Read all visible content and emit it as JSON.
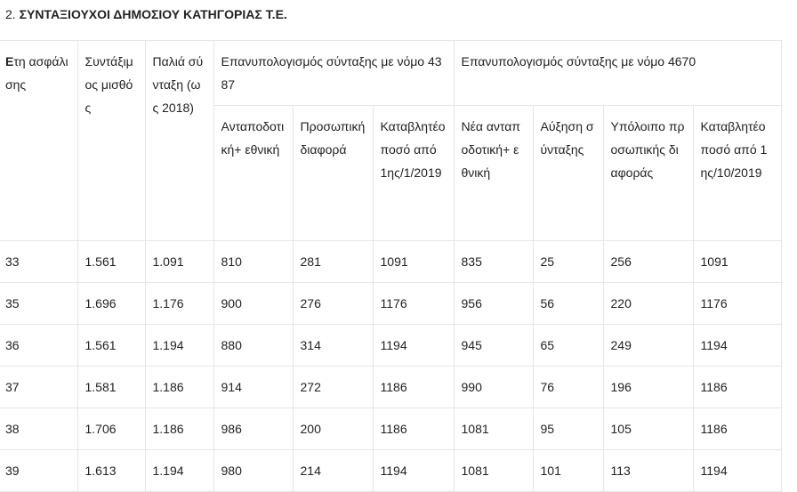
{
  "heading": {
    "number": "2.",
    "title": "ΣΥΝΤΑΞΙΟΥΧΟΙ ΔΗΜΟΣΙΟΥ ΚΑΤΗΓΟΡΙΑΣ Τ.Ε."
  },
  "table": {
    "headers": {
      "years_first_letter": "Ε",
      "years_rest": "τη ασφάλισης",
      "salary": "Συντάξιμος μισθός",
      "old_pension": "Παλιά σύνταξη (ως 2018)",
      "group_4387": "Επανυπολογισμός σύνταξης με νόμο 4387",
      "group_4670": "Επανυπολογισμός σύνταξης με νόμο 4670",
      "sub": [
        "Ανταποδοτική+ εθνική",
        "Προσωπική διαφορά",
        "Καταβλητέο ποσό από 1ης/1/2019",
        "Νέα ανταποδοτική+ εθνική",
        "Αύξηση σύνταξης",
        "Υπόλοιπο προσωπικής διαφοράς",
        "Καταβλητέο ποσό από 1ης/10/2019"
      ]
    },
    "rows": [
      [
        "33",
        "1.561",
        "1.091",
        "810",
        "281",
        "1091",
        "835",
        "25",
        "256",
        "1091"
      ],
      [
        "35",
        "1.696",
        "1.176",
        "900",
        "276",
        "1176",
        "956",
        "56",
        "220",
        "1176"
      ],
      [
        "36",
        "1.561",
        "1.194",
        "880",
        "314",
        "1194",
        "945",
        "65",
        "249",
        "1194"
      ],
      [
        "37",
        "1.581",
        "1.186",
        "914",
        "272",
        "1186",
        "990",
        "76",
        "196",
        "1186"
      ],
      [
        "38",
        "1.706",
        "1.186",
        "986",
        "200",
        "1186",
        "1081",
        "95",
        "105",
        "1186"
      ],
      [
        "39",
        "1.613",
        "1.194",
        "980",
        "214",
        "1194",
        "1081",
        "101",
        "113",
        "1194"
      ]
    ]
  }
}
